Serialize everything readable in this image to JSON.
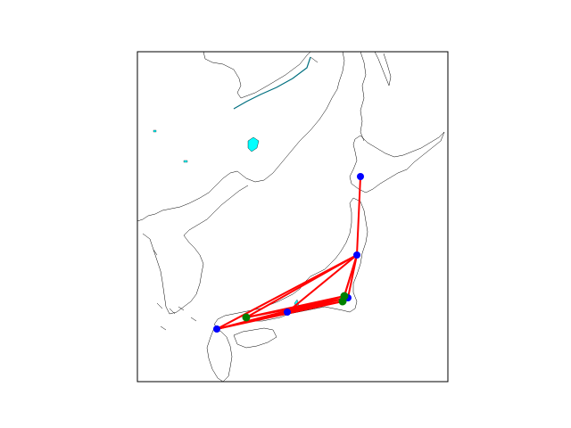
{
  "map": {
    "style": {
      "background": "#ffffff",
      "frame_color": "#000000",
      "coastline_color": "#000000",
      "lake_color": "#00ffff",
      "route_color": "#ff0000",
      "city_color": "#0000ff",
      "airport_color": "#008000"
    },
    "routes": [
      {
        "from": "sapporo",
        "to": "sendai"
      },
      {
        "from": "sendai",
        "to": "tokyo"
      },
      {
        "from": "sendai",
        "to": "tokyo_south"
      },
      {
        "from": "sendai",
        "to": "yokohama"
      },
      {
        "from": "sendai",
        "to": "fukuoka"
      },
      {
        "from": "sendai",
        "to": "osaka"
      },
      {
        "from": "sendai",
        "to": "hiroshima"
      },
      {
        "from": "tokyo",
        "to": "fukuoka"
      },
      {
        "from": "tokyo",
        "to": "osaka"
      },
      {
        "from": "tokyo_south",
        "to": "fukuoka"
      },
      {
        "from": "tokyo_south",
        "to": "osaka"
      },
      {
        "from": "yokohama",
        "to": "fukuoka"
      },
      {
        "from": "yokohama",
        "to": "hiroshima"
      },
      {
        "from": "tokyo",
        "to": "hiroshima"
      }
    ],
    "markers": [
      {
        "id": "sapporo",
        "kind": "city"
      },
      {
        "id": "sendai",
        "kind": "city"
      },
      {
        "id": "tokyo",
        "kind": "city"
      },
      {
        "id": "tokyo_south",
        "kind": "airport"
      },
      {
        "id": "yokohama",
        "kind": "airport"
      },
      {
        "id": "osaka",
        "kind": "city"
      },
      {
        "id": "hiroshima",
        "kind": "airport"
      },
      {
        "id": "fukuoka",
        "kind": "city"
      }
    ]
  }
}
